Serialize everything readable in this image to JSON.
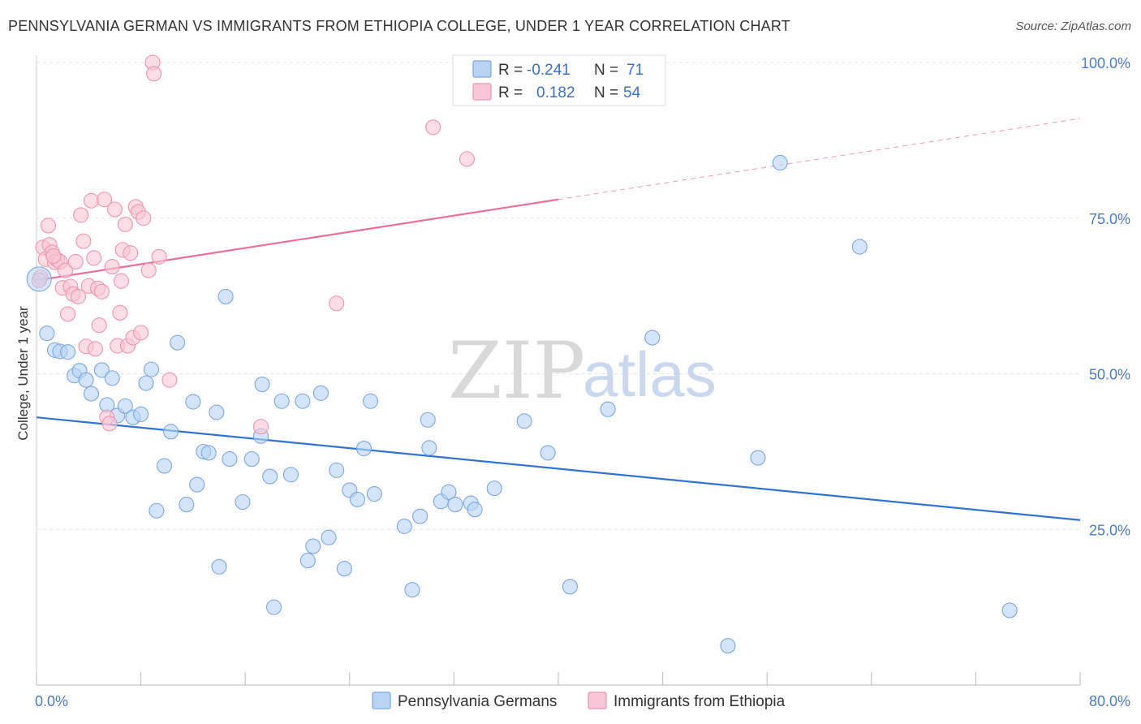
{
  "title": "PENNSYLVANIA GERMAN VS IMMIGRANTS FROM ETHIOPIA COLLEGE, UNDER 1 YEAR CORRELATION CHART",
  "source": "Source: ZipAtlas.com",
  "watermark": {
    "zip": "ZIP",
    "atlas": "atlas"
  },
  "colors": {
    "blue_fill": "#b9d3f5",
    "blue_stroke": "#7aa7e0",
    "blue_line": "#2f74d0",
    "pink_fill": "#f8c6d6",
    "pink_stroke": "#ee94b1",
    "pink_line": "#e8709a",
    "tick_text": "#4a7cc4",
    "grid": "#e3e3e3"
  },
  "legend_box": {
    "rows": [
      {
        "r_label": "R =",
        "r_value": "-0.241",
        "n_label": "N =",
        "n_value": "71"
      },
      {
        "r_label": "R =",
        "r_value": "0.182",
        "n_label": "N =",
        "n_value": "54"
      }
    ]
  },
  "chart_data": {
    "type": "scatter",
    "title": "PENNSYLVANIA GERMAN VS IMMIGRANTS FROM ETHIOPIA COLLEGE, UNDER 1 YEAR CORRELATION CHART",
    "xlabel": "",
    "ylabel": "College, Under 1 year",
    "xlim": [
      0,
      80
    ],
    "ylim": [
      0,
      100
    ],
    "x_tick_labels": [
      "0.0%",
      "80.0%"
    ],
    "y_ticks": [
      25,
      50,
      75,
      100
    ],
    "y_tick_labels": [
      "25.0%",
      "50.0%",
      "75.0%",
      "100.0%"
    ],
    "grid": true,
    "legend_position": "bottom",
    "series": [
      {
        "name": "Pennsylvania Germans",
        "color": "#b9d3f5",
        "r": -0.241,
        "n": 71,
        "trend": {
          "x0": 0,
          "y0": 43.0,
          "x1": 80,
          "y1": 26.5,
          "solid_until": 80
        },
        "points": [
          [
            0.8,
            56.5
          ],
          [
            1.4,
            53.8
          ],
          [
            1.8,
            53.6
          ],
          [
            2.4,
            53.5
          ],
          [
            2.9,
            49.7
          ],
          [
            3.3,
            50.5
          ],
          [
            3.8,
            49.0
          ],
          [
            4.2,
            46.8
          ],
          [
            5.0,
            50.6
          ],
          [
            5.4,
            45.0
          ],
          [
            5.8,
            49.3
          ],
          [
            6.2,
            43.3
          ],
          [
            6.8,
            44.8
          ],
          [
            7.4,
            43.0
          ],
          [
            8.0,
            43.5
          ],
          [
            8.4,
            48.5
          ],
          [
            8.8,
            50.7
          ],
          [
            9.2,
            28.0
          ],
          [
            9.8,
            35.2
          ],
          [
            10.3,
            40.7
          ],
          [
            10.8,
            55.0
          ],
          [
            11.5,
            29.0
          ],
          [
            12.0,
            45.5
          ],
          [
            12.3,
            32.2
          ],
          [
            12.8,
            37.5
          ],
          [
            13.2,
            37.3
          ],
          [
            13.8,
            43.8
          ],
          [
            14.0,
            19.0
          ],
          [
            14.5,
            62.4
          ],
          [
            14.8,
            36.3
          ],
          [
            15.8,
            29.4
          ],
          [
            16.5,
            36.3
          ],
          [
            17.2,
            40.0
          ],
          [
            17.3,
            48.3
          ],
          [
            17.9,
            33.5
          ],
          [
            18.2,
            12.5
          ],
          [
            18.8,
            45.6
          ],
          [
            19.5,
            33.8
          ],
          [
            20.4,
            45.6
          ],
          [
            20.8,
            20.0
          ],
          [
            21.2,
            22.3
          ],
          [
            21.8,
            46.9
          ],
          [
            22.4,
            23.7
          ],
          [
            23.0,
            34.5
          ],
          [
            23.6,
            18.7
          ],
          [
            24.0,
            31.3
          ],
          [
            24.6,
            29.8
          ],
          [
            25.1,
            38.0
          ],
          [
            25.6,
            45.6
          ],
          [
            25.9,
            30.7
          ],
          [
            28.2,
            25.5
          ],
          [
            28.8,
            15.3
          ],
          [
            29.4,
            27.1
          ],
          [
            30.0,
            42.6
          ],
          [
            30.1,
            38.1
          ],
          [
            31.0,
            29.5
          ],
          [
            31.6,
            31.0
          ],
          [
            32.1,
            29.0
          ],
          [
            33.3,
            29.2
          ],
          [
            33.6,
            28.2
          ],
          [
            35.1,
            31.6
          ],
          [
            37.4,
            42.4
          ],
          [
            39.2,
            37.3
          ],
          [
            40.9,
            15.8
          ],
          [
            43.8,
            44.3
          ],
          [
            47.2,
            55.8
          ],
          [
            53.0,
            6.3
          ],
          [
            55.3,
            36.5
          ],
          [
            57.0,
            83.9
          ],
          [
            63.1,
            70.4
          ],
          [
            74.6,
            12.0
          ]
        ]
      },
      {
        "name": "Immigrants from Ethiopia",
        "color": "#f8c6d6",
        "r": 0.182,
        "n": 54,
        "trend": {
          "x0": 0,
          "y0": 65.0,
          "x1": 80,
          "y1": 91.0,
          "solid_until": 40
        },
        "points": [
          [
            0.3,
            65.5
          ],
          [
            0.5,
            70.3
          ],
          [
            0.7,
            68.4
          ],
          [
            0.9,
            73.8
          ],
          [
            1.0,
            70.7
          ],
          [
            1.2,
            69.5
          ],
          [
            1.4,
            67.9
          ],
          [
            1.6,
            68.3
          ],
          [
            1.8,
            68.0
          ],
          [
            2.0,
            63.8
          ],
          [
            2.2,
            66.6
          ],
          [
            2.4,
            59.6
          ],
          [
            2.6,
            64.0
          ],
          [
            2.8,
            62.8
          ],
          [
            3.0,
            68.0
          ],
          [
            3.2,
            62.4
          ],
          [
            3.4,
            75.5
          ],
          [
            3.6,
            71.3
          ],
          [
            3.8,
            54.4
          ],
          [
            4.0,
            64.1
          ],
          [
            4.2,
            77.8
          ],
          [
            4.4,
            68.6
          ],
          [
            4.5,
            54.0
          ],
          [
            4.7,
            63.7
          ],
          [
            4.8,
            57.8
          ],
          [
            5.0,
            63.2
          ],
          [
            5.2,
            78.0
          ],
          [
            5.4,
            43.0
          ],
          [
            5.6,
            42.0
          ],
          [
            5.8,
            67.2
          ],
          [
            6.0,
            76.4
          ],
          [
            6.2,
            54.5
          ],
          [
            6.4,
            59.8
          ],
          [
            6.6,
            69.9
          ],
          [
            6.8,
            74.0
          ],
          [
            7.0,
            54.5
          ],
          [
            7.2,
            69.4
          ],
          [
            7.4,
            55.8
          ],
          [
            7.6,
            76.8
          ],
          [
            7.8,
            76.0
          ],
          [
            8.0,
            56.6
          ],
          [
            8.2,
            75.0
          ],
          [
            8.6,
            66.6
          ],
          [
            8.9,
            100.0
          ],
          [
            9.0,
            98.2
          ],
          [
            9.4,
            68.8
          ],
          [
            10.2,
            49.0
          ],
          [
            17.2,
            41.5
          ],
          [
            23.0,
            61.3
          ],
          [
            30.4,
            89.6
          ],
          [
            33.0,
            84.5
          ],
          [
            0.2,
            65.0
          ],
          [
            1.3,
            68.9
          ],
          [
            6.5,
            64.9
          ]
        ]
      }
    ]
  }
}
